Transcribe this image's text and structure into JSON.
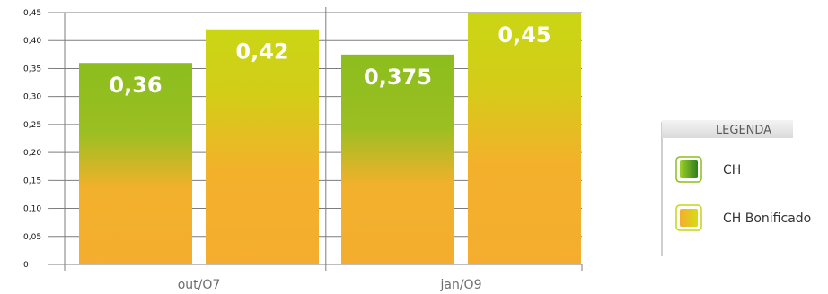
{
  "chart_data": {
    "type": "bar",
    "categories": [
      "out/O7",
      "jan/O9"
    ],
    "series": [
      {
        "name": "CH",
        "values": [
          0.36,
          0.375
        ],
        "labels": [
          "0,36",
          "0,375"
        ]
      },
      {
        "name": "CH Bonificado",
        "values": [
          0.42,
          0.45
        ],
        "labels": [
          "0,42",
          "0,45"
        ]
      }
    ],
    "ylim": [
      0,
      0.45
    ],
    "yticks": [
      "0",
      "0,05",
      "0,10",
      "0,15",
      "0,20",
      "0,25",
      "0,30",
      "0,35",
      "0,40",
      "0,45"
    ],
    "grid": true,
    "legend": {
      "title": "LEGENDA",
      "position": "right"
    },
    "colors": {
      "ch_top": "#8cbd1e",
      "ch_bottom": "#f5ad2f",
      "bon_top": "#cad614",
      "bon_bottom": "#f5ad2f",
      "grid": "#7d7d7d",
      "value_label": "#ffffff"
    }
  }
}
